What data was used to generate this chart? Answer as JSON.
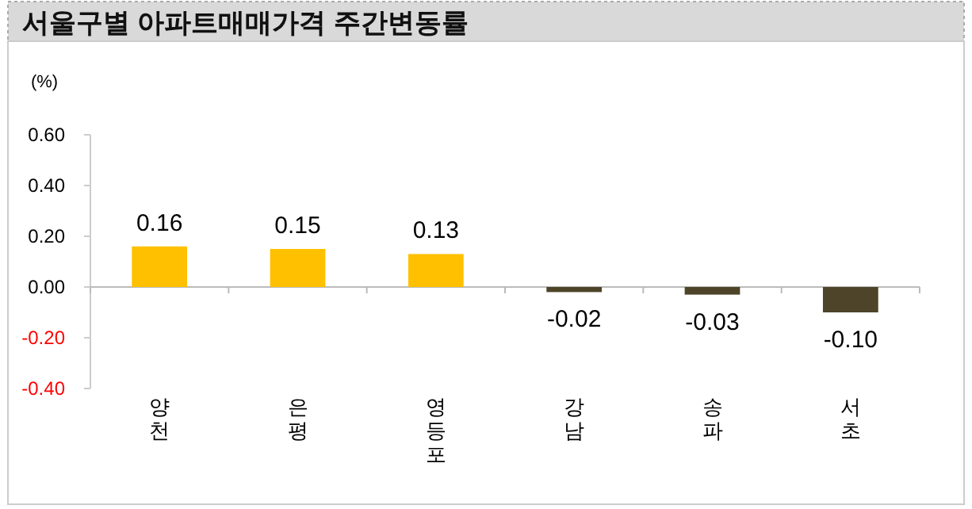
{
  "chart_data": {
    "type": "bar",
    "title": "서울구별 아파트매매가격 주간변동률",
    "ylabel": "(%)",
    "categories": [
      "양천",
      "은평",
      "영등포",
      "강남",
      "송파",
      "서초"
    ],
    "values": [
      0.16,
      0.15,
      0.13,
      -0.02,
      -0.03,
      -0.1
    ],
    "colors": [
      "#ffc000",
      "#ffc000",
      "#ffc000",
      "#4d4429",
      "#4d4429",
      "#4d4429"
    ],
    "value_labels": [
      "0.16",
      "0.15",
      "0.13",
      "-0.02",
      "-0.03",
      "-0.10"
    ],
    "ylim": [
      -0.4,
      0.6
    ],
    "yticks": [
      {
        "value": -0.4,
        "label": "-0.40"
      },
      {
        "value": -0.2,
        "label": "-0.20"
      },
      {
        "value": 0,
        "label": "0.00"
      },
      {
        "value": 0.2,
        "label": "0.20"
      },
      {
        "value": 0.4,
        "label": "0.40"
      },
      {
        "value": 0.6,
        "label": "0.60"
      }
    ],
    "data_labels": true
  }
}
